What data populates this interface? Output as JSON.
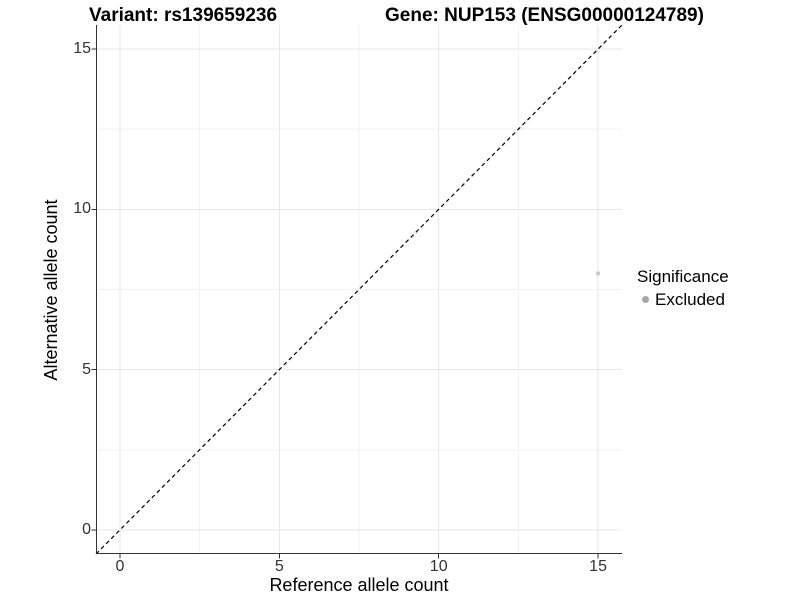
{
  "figure": {
    "title_left": "Variant: rs139659236",
    "title_right": "Gene: NUP153 (ENSG00000124789)"
  },
  "chart_data": {
    "type": "scatter",
    "title": "Variant: rs139659236   Gene: NUP153 (ENSG00000124789)",
    "xlabel": "Reference allele count",
    "ylabel": "Alternative allele count",
    "xlim": [
      -0.75,
      15.75
    ],
    "ylim": [
      -0.75,
      15.75
    ],
    "xticks": [
      0,
      5,
      10,
      15
    ],
    "yticks": [
      0,
      5,
      10,
      15
    ],
    "xticks_minor": [
      2.5,
      7.5,
      12.5
    ],
    "yticks_minor": [
      2.5,
      7.5,
      12.5
    ],
    "grid": "major+minor",
    "series": [
      {
        "name": "Excluded",
        "color": "#c9c9c9",
        "point_radius": 2.2,
        "points": [
          {
            "x": 15,
            "y": 8
          }
        ]
      }
    ],
    "reference_line": {
      "type": "abline",
      "slope": 1,
      "intercept": 0,
      "style": "dashed",
      "color": "#000000"
    },
    "legend": {
      "position": "right",
      "title": "Significance",
      "items": [
        {
          "label": "Excluded",
          "color": "#a6a6a6"
        }
      ]
    }
  },
  "style": {
    "grid_major_color": "#e7e7e7",
    "grid_minor_color": "#f2f2f2",
    "axis_line_color": "#333333",
    "tick_mark_color": "#333333",
    "tick_label_color": "#333333",
    "background": "#ffffff"
  }
}
